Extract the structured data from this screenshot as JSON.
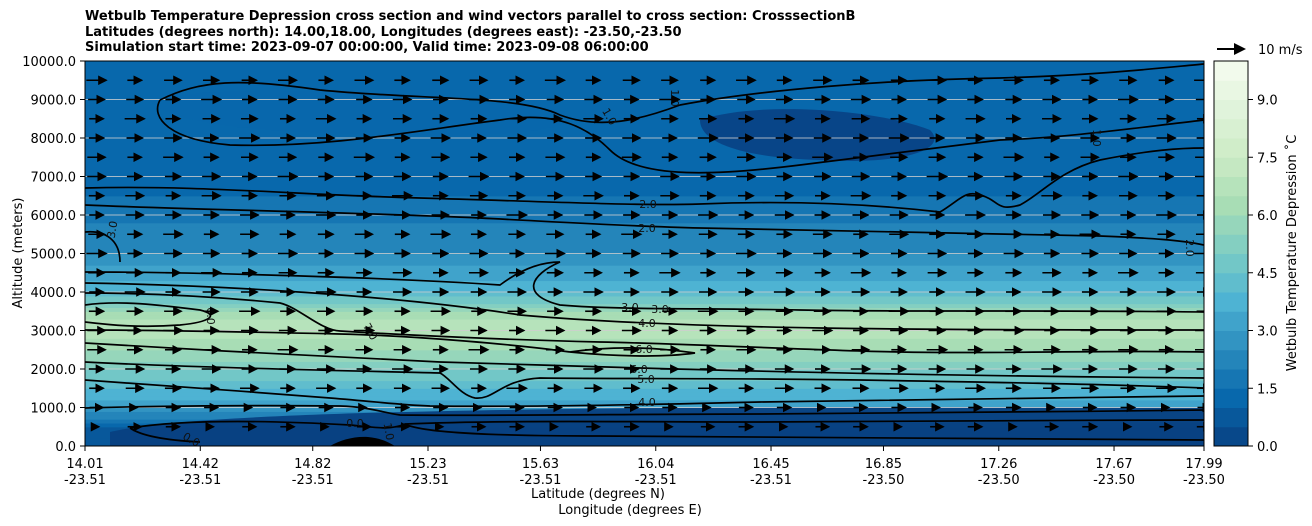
{
  "title": {
    "line1": "Wetbulb Temperature Depression cross section and wind vectors parallel to cross section: CrosssectionB",
    "line2": "Latitudes (degrees north): 14.00,18.00, Longitudes (degrees east): -23.50,-23.50",
    "line3": "Simulation start time: 2023-09-07 00:00:00, Valid time: 2023-09-08 06:00:00"
  },
  "chart_data": {
    "type": "heatmap",
    "subtype": "filled contour cross section with wind vectors",
    "ylabel": "Altitude (meters)",
    "xlabel_line1": "Latitude (degrees N)",
    "xlabel_line2": "Longitude (degrees E)",
    "ylim": [
      0,
      10000
    ],
    "y_ticks": [
      "0.0",
      "1000.0",
      "2000.0",
      "3000.0",
      "4000.0",
      "5000.0",
      "6000.0",
      "7000.0",
      "8000.0",
      "9000.0",
      "10000.0"
    ],
    "x_tick_values": [
      14.01,
      14.42,
      14.82,
      15.23,
      15.63,
      16.04,
      16.45,
      16.85,
      17.26,
      17.67,
      17.99
    ],
    "x_ticks_lat": [
      "14.01",
      "14.42",
      "14.82",
      "15.23",
      "15.63",
      "16.04",
      "16.45",
      "16.85",
      "17.26",
      "17.67",
      "17.99"
    ],
    "x_ticks_lon": [
      "-23.51",
      "-23.51",
      "-23.51",
      "-23.51",
      "-23.51",
      "-23.51",
      "-23.51",
      "-23.50",
      "-23.50",
      "-23.50",
      "-23.50"
    ],
    "xlim": [
      14.01,
      17.99
    ],
    "grid": "horizontal",
    "colorbar": {
      "label": "Wetbulb Temperature Depression ˚C",
      "range": [
        0,
        10
      ],
      "ticks": [
        "0.0",
        "1.5",
        "3.0",
        "4.5",
        "6.0",
        "7.5",
        "9.0"
      ],
      "tick_values": [
        0,
        1.5,
        3.0,
        4.5,
        6.0,
        7.5,
        9.0
      ],
      "colormap": [
        "#084081",
        "#0868ac",
        "#2b8cbe",
        "#4eb3d3",
        "#7bccc4",
        "#a8ddb5",
        "#ccebc5",
        "#e0f3db",
        "#f7fcf0"
      ]
    },
    "wind_key": {
      "label": "10 m/s",
      "speed": 10
    },
    "wind_direction": "parallel to section, toward increasing latitude",
    "depression_profile": [
      {
        "alt": 0,
        "value": 0.5
      },
      {
        "alt": 500,
        "value": 1.0
      },
      {
        "alt": 1000,
        "value": 3.0
      },
      {
        "alt": 2000,
        "value": 5.0
      },
      {
        "alt": 2500,
        "value": 6.0
      },
      {
        "alt": 3200,
        "value": 7.0
      },
      {
        "alt": 4000,
        "value": 4.0
      },
      {
        "alt": 5000,
        "value": 2.5
      },
      {
        "alt": 6500,
        "value": 1.5
      },
      {
        "alt": 8000,
        "value": 1.0
      },
      {
        "alt": 10000,
        "value": 1.2
      }
    ],
    "contour_labels": [
      "0.0",
      "1.0",
      "1.0",
      "1.0",
      "1.0",
      "2.0",
      "2.0",
      "2.0",
      "3.0",
      "3.0",
      "3.0",
      "4.0",
      "4.0",
      "5.0",
      "6.0",
      "6.0",
      "7.0",
      "0.0",
      "0.0"
    ]
  }
}
